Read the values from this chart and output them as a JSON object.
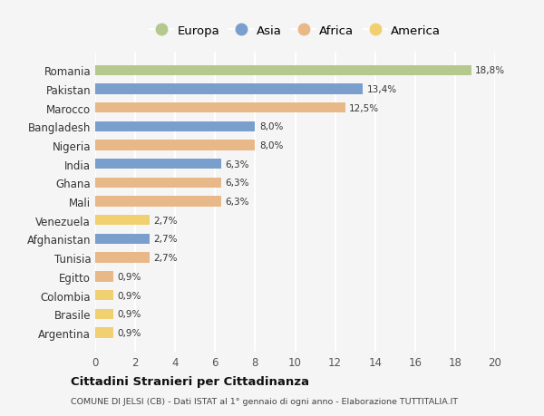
{
  "categories": [
    "Romania",
    "Pakistan",
    "Marocco",
    "Bangladesh",
    "Nigeria",
    "India",
    "Ghana",
    "Mali",
    "Venezuela",
    "Afghanistan",
    "Tunisia",
    "Egitto",
    "Colombia",
    "Brasile",
    "Argentina"
  ],
  "values": [
    18.8,
    13.4,
    12.5,
    8.0,
    8.0,
    6.3,
    6.3,
    6.3,
    2.7,
    2.7,
    2.7,
    0.9,
    0.9,
    0.9,
    0.9
  ],
  "labels": [
    "18,8%",
    "13,4%",
    "12,5%",
    "8,0%",
    "8,0%",
    "6,3%",
    "6,3%",
    "6,3%",
    "2,7%",
    "2,7%",
    "2,7%",
    "0,9%",
    "0,9%",
    "0,9%",
    "0,9%"
  ],
  "continents": [
    "Europa",
    "Asia",
    "Africa",
    "Asia",
    "Africa",
    "Asia",
    "Africa",
    "Africa",
    "America",
    "Asia",
    "Africa",
    "Africa",
    "America",
    "America",
    "America"
  ],
  "colors": {
    "Europa": "#b5c98e",
    "Asia": "#7b9fcc",
    "Africa": "#e8b888",
    "America": "#f0d070"
  },
  "legend_order": [
    "Europa",
    "Asia",
    "Africa",
    "America"
  ],
  "title": "Cittadini Stranieri per Cittadinanza",
  "subtitle": "COMUNE DI JELSI (CB) - Dati ISTAT al 1° gennaio di ogni anno - Elaborazione TUTTITALIA.IT",
  "xlim": [
    0,
    20
  ],
  "xticks": [
    0,
    2,
    4,
    6,
    8,
    10,
    12,
    14,
    16,
    18,
    20
  ],
  "background_color": "#f5f5f5",
  "grid_color": "#ffffff",
  "bar_height": 0.55
}
